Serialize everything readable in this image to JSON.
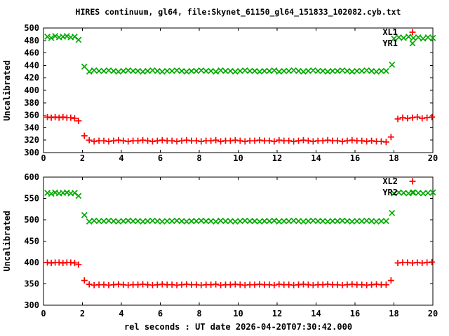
{
  "title": "HIRES continuum, gl64, file:Skynet_61150_gl64_151833_102082.cyb.txt",
  "xlabel": "rel seconds : UT date 2026-04-20T07:30:42.000",
  "colors": {
    "red_series": "#ff0000",
    "green_series": "#00aa00",
    "axis": "#000000",
    "background": "#ffffff"
  },
  "chart_data": [
    {
      "type": "scatter",
      "panel": "top",
      "ylabel": "Uncalibrated",
      "xlim": [
        0,
        20
      ],
      "ylim": [
        300,
        500
      ],
      "xticks": [
        0,
        2,
        4,
        6,
        8,
        10,
        12,
        14,
        16,
        18,
        20
      ],
      "yticks": [
        300,
        320,
        340,
        360,
        380,
        400,
        420,
        440,
        460,
        480,
        500
      ],
      "grid": false,
      "legend_position": "top-right",
      "series": [
        {
          "name": "XL1",
          "marker": "plus",
          "color": "#ff0000",
          "segments": [
            {
              "x0": 0.2,
              "dx": 0.2,
              "y": [
                357,
                356,
                357,
                356,
                357,
                356,
                356,
                355,
                351
              ]
            },
            {
              "x0": 2.1,
              "dx": 0.25,
              "y": [
                327
              ]
            },
            {
              "x0": 2.35,
              "dx": 0.25,
              "y": [
                320,
                318,
                319,
                319,
                318,
                319,
                320,
                319,
                318,
                319,
                319,
                320,
                319,
                318,
                319,
                320,
                319,
                319,
                318,
                319,
                320,
                319,
                319,
                318,
                319,
                319,
                320,
                318,
                319,
                319,
                320,
                319,
                318,
                319,
                319,
                320,
                319,
                319,
                318,
                320,
                319,
                319,
                318,
                319,
                320,
                319,
                318,
                319,
                319,
                320,
                319,
                319,
                318,
                319,
                320,
                319,
                319,
                318,
                319,
                318,
                318,
                317
              ]
            },
            {
              "x0": 17.85,
              "dx": 0.25,
              "y": [
                325
              ]
            },
            {
              "x0": 18.2,
              "dx": 0.25,
              "y": [
                354,
                356,
                355,
                356,
                357,
                355,
                356,
                357
              ]
            }
          ]
        },
        {
          "name": "YR1",
          "marker": "cross",
          "color": "#00aa00",
          "segments": [
            {
              "x0": 0.2,
              "dx": 0.2,
              "y": [
                486,
                484,
                487,
                485,
                486,
                487,
                485,
                486,
                481
              ]
            },
            {
              "x0": 2.1,
              "dx": 0.25,
              "y": [
                438
              ]
            },
            {
              "x0": 2.35,
              "dx": 0.25,
              "y": [
                430,
                432,
                431,
                431,
                432,
                431,
                430,
                431,
                432,
                431,
                431,
                430,
                431,
                432,
                431,
                430,
                431,
                431,
                432,
                431,
                430,
                431,
                431,
                432,
                431,
                431,
                430,
                432,
                431,
                431,
                430,
                431,
                432,
                431,
                431,
                430,
                431,
                431,
                432,
                430,
                431,
                431,
                432,
                431,
                430,
                431,
                432,
                431,
                431,
                430,
                431,
                431,
                432,
                431,
                430,
                431,
                431,
                432,
                431,
                430,
                431,
                431
              ]
            },
            {
              "x0": 17.9,
              "dx": 0.25,
              "y": [
                441
              ]
            },
            {
              "x0": 18.0,
              "dx": 0.25,
              "y": [
                483,
                485,
                484,
                486,
                484,
                485,
                483,
                485,
                484
              ]
            }
          ]
        }
      ]
    },
    {
      "type": "scatter",
      "panel": "bottom",
      "ylabel": "Uncalibrated",
      "xlim": [
        0,
        20
      ],
      "ylim": [
        300,
        600
      ],
      "xticks": [
        0,
        2,
        4,
        6,
        8,
        10,
        12,
        14,
        16,
        18,
        20
      ],
      "yticks": [
        300,
        350,
        400,
        450,
        500,
        550,
        600
      ],
      "grid": false,
      "legend_position": "top-right",
      "series": [
        {
          "name": "XL2",
          "marker": "plus",
          "color": "#ff0000",
          "segments": [
            {
              "x0": 0.2,
              "dx": 0.2,
              "y": [
                400,
                399,
                400,
                400,
                399,
                400,
                400,
                399,
                395
              ]
            },
            {
              "x0": 2.1,
              "dx": 0.25,
              "y": [
                358
              ]
            },
            {
              "x0": 2.35,
              "dx": 0.25,
              "y": [
                349,
                347,
                348,
                348,
                347,
                348,
                349,
                348,
                347,
                348,
                348,
                349,
                348,
                347,
                348,
                349,
                348,
                348,
                347,
                348,
                349,
                348,
                348,
                347,
                348,
                348,
                349,
                347,
                348,
                348,
                349,
                348,
                347,
                348,
                348,
                349,
                348,
                348,
                347,
                349,
                348,
                348,
                347,
                348,
                349,
                348,
                347,
                348,
                348,
                349,
                348,
                348,
                347,
                348,
                349,
                348,
                348,
                347,
                348,
                349,
                348,
                348
              ]
            },
            {
              "x0": 17.85,
              "dx": 0.25,
              "y": [
                358
              ]
            },
            {
              "x0": 18.2,
              "dx": 0.25,
              "y": [
                399,
                400,
                400,
                399,
                400,
                399,
                400,
                401
              ]
            }
          ]
        },
        {
          "name": "YR2",
          "marker": "cross",
          "color": "#00aa00",
          "segments": [
            {
              "x0": 0.2,
              "dx": 0.2,
              "y": [
                563,
                561,
                564,
                562,
                563,
                564,
                562,
                563,
                556
              ]
            },
            {
              "x0": 2.1,
              "dx": 0.25,
              "y": [
                511
              ]
            },
            {
              "x0": 2.35,
              "dx": 0.25,
              "y": [
                496,
                498,
                497,
                497,
                498,
                497,
                496,
                497,
                498,
                497,
                497,
                496,
                497,
                498,
                497,
                496,
                497,
                497,
                498,
                497,
                496,
                497,
                497,
                498,
                497,
                497,
                496,
                498,
                497,
                497,
                496,
                497,
                498,
                497,
                497,
                496,
                497,
                497,
                498,
                496,
                497,
                497,
                498,
                497,
                496,
                497,
                498,
                497,
                497,
                496,
                497,
                497,
                498,
                497,
                496,
                497,
                497,
                498,
                497,
                496,
                497,
                497
              ]
            },
            {
              "x0": 17.9,
              "dx": 0.25,
              "y": [
                516
              ]
            },
            {
              "x0": 18.0,
              "dx": 0.25,
              "y": [
                562,
                564,
                563,
                562,
                564,
                563,
                562,
                563,
                564
              ]
            }
          ]
        }
      ]
    }
  ]
}
